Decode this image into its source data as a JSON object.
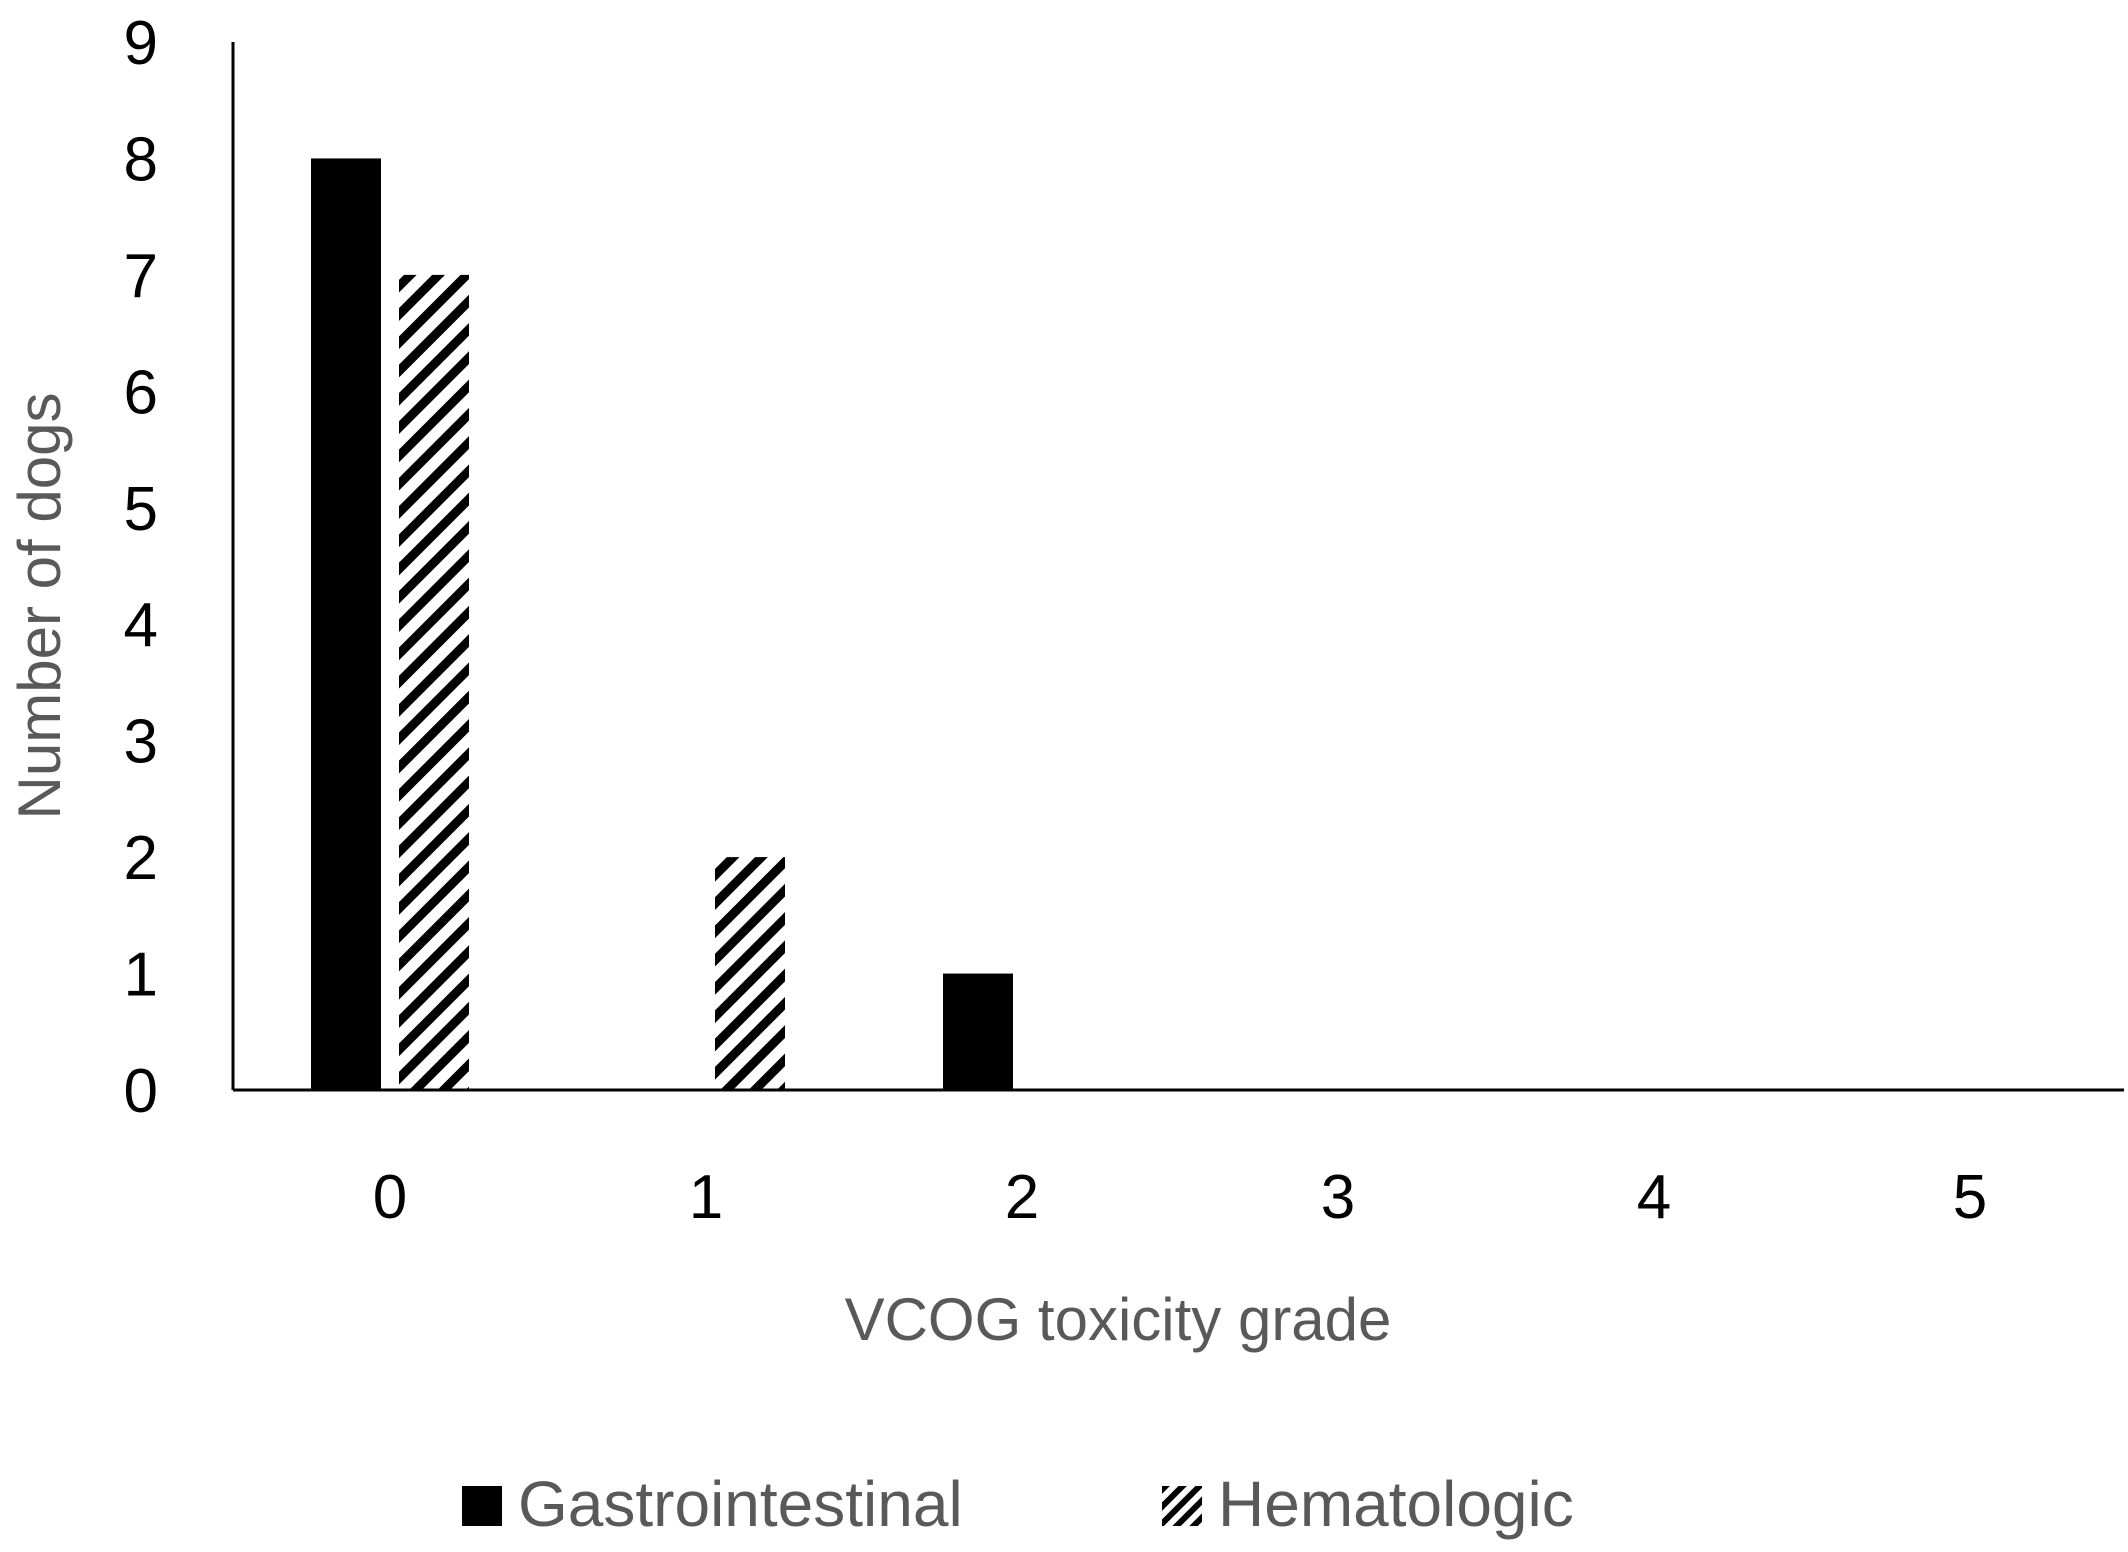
{
  "chart_data": {
    "type": "bar",
    "title": "",
    "xlabel": "VCOG toxicity grade",
    "ylabel": "Number of dogs",
    "categories": [
      "0",
      "1",
      "2",
      "3",
      "4",
      "5"
    ],
    "y_ticks": [
      "0",
      "1",
      "2",
      "3",
      "4",
      "5",
      "6",
      "7",
      "8",
      "9"
    ],
    "ylim": [
      0,
      9
    ],
    "grid": false,
    "legend_position": "bottom",
    "series": [
      {
        "name": "Gastrointestinal",
        "values": [
          8,
          0,
          1,
          0,
          0,
          0
        ],
        "fill": "solid",
        "color": "#000000"
      },
      {
        "name": "Hematologic",
        "values": [
          7,
          2,
          0,
          0,
          0,
          0
        ],
        "fill": "diagonal-hatch",
        "color": "#000000"
      }
    ]
  }
}
